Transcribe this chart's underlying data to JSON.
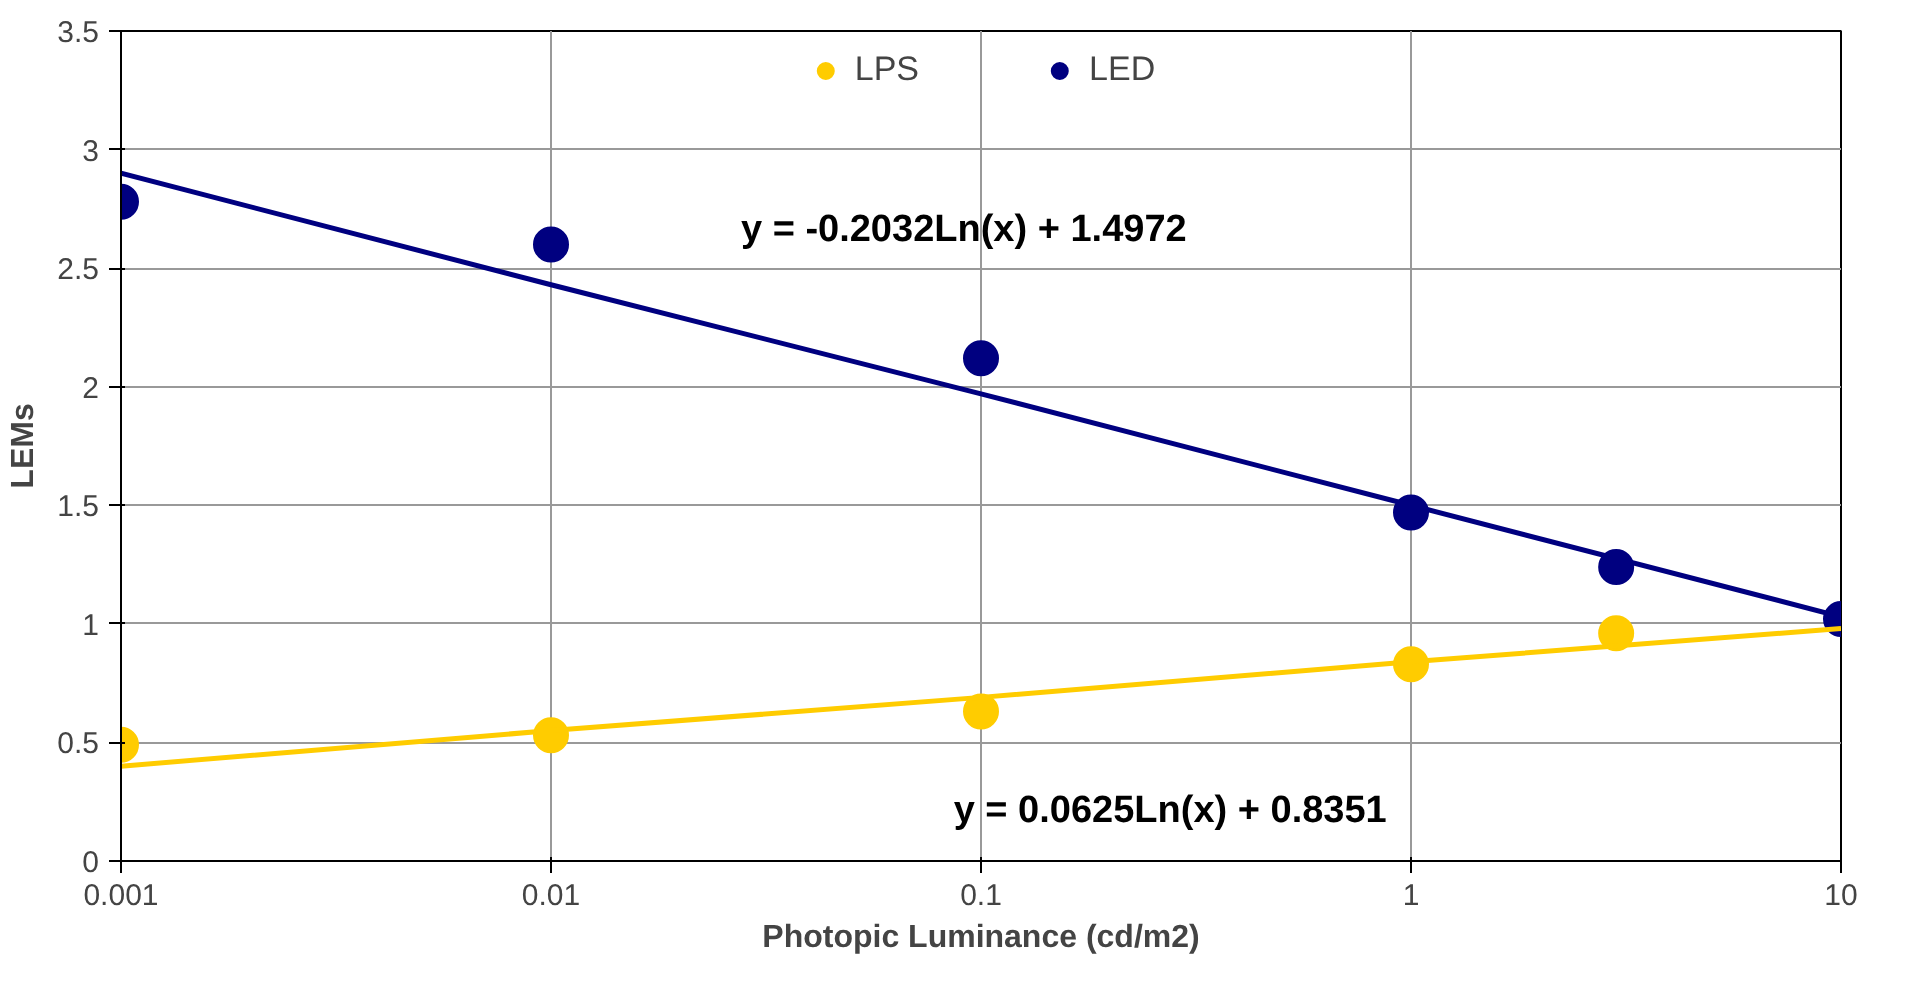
{
  "chart_data": {
    "type": "scatter",
    "xlabel": "Photopic Luminance (cd/m2)",
    "ylabel": "LEMs",
    "x": [
      0.001,
      0.01,
      0.1,
      1,
      3,
      10
    ],
    "series": [
      {
        "name": "LPS",
        "color": "#ffcc00",
        "values": [
          0.49,
          0.53,
          0.63,
          0.83,
          0.96,
          null
        ]
      },
      {
        "name": "LED",
        "color": "#000080",
        "values": [
          2.78,
          2.6,
          2.12,
          1.47,
          1.24,
          1.02
        ]
      },
      {
        "type": "line",
        "color": "#ffcc00",
        "marker": "none",
        "x": [
          0.001,
          0.01,
          0.1,
          1,
          10
        ],
        "values": [
          0.4,
          0.55,
          0.69,
          0.84,
          0.98
        ]
      },
      {
        "type": "line",
        "color": "#000080",
        "marker": "none",
        "x": [
          0.001,
          0.01,
          0.1,
          1,
          10
        ],
        "values": [
          2.9,
          2.43,
          1.97,
          1.5,
          1.03
        ]
      }
    ],
    "annotations": [
      "y = -0.2032Ln(x) + 1.4972",
      "y = 0.0625Ln(x) + 0.8351"
    ],
    "log": "x",
    "xlim": [
      0.001,
      10
    ],
    "ylim": [
      0,
      3.5
    ],
    "xticks": [
      0.001,
      0.01,
      0.1,
      1,
      10
    ],
    "yticks": [
      0,
      0.5,
      1,
      1.5,
      2,
      2.5,
      3,
      3.5
    ],
    "grid": true,
    "legend": "top",
    "marker": "circle",
    "line_style": "solid"
  }
}
